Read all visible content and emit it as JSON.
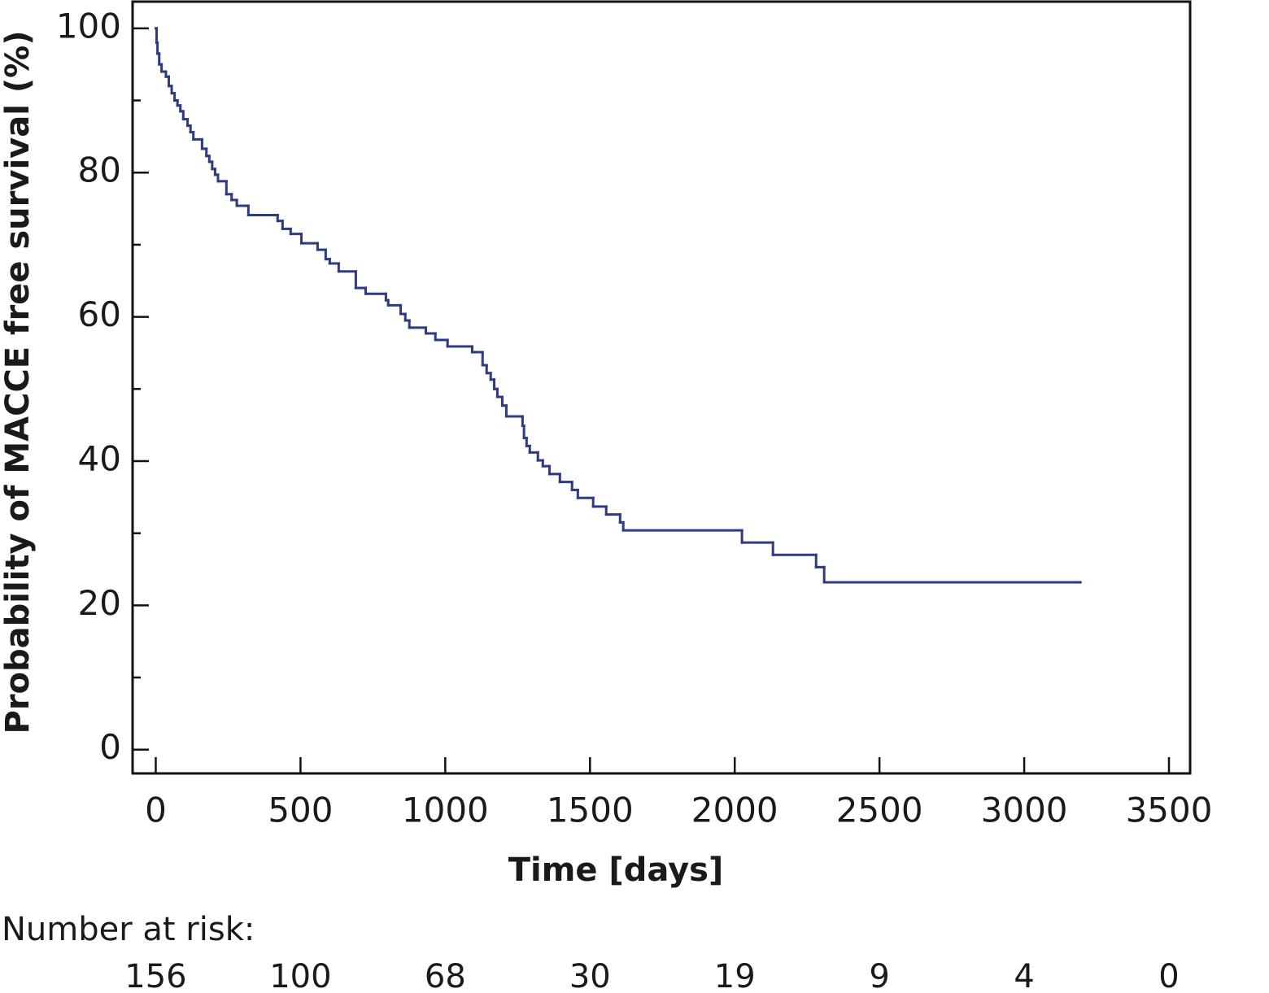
{
  "chart_data": {
    "type": "step",
    "x_label": "Time [days]",
    "y_label": "Probability of MACCE free survival (%)",
    "color": "#2b3a8c",
    "xlim": [
      -80,
      3573
    ],
    "ylim": [
      -3.3,
      103.7
    ],
    "xticks": [
      0,
      500,
      1000,
      1500,
      2000,
      2500,
      3000,
      3500
    ],
    "yticks": [
      0,
      20,
      40,
      60,
      80,
      100
    ],
    "yminor_ticks": [
      10,
      30,
      50,
      70,
      90
    ],
    "x": [
      0,
      3,
      6,
      12,
      20,
      35,
      45,
      55,
      65,
      75,
      85,
      95,
      110,
      120,
      130,
      160,
      175,
      185,
      195,
      205,
      215,
      244,
      262,
      280,
      320,
      421,
      438,
      466,
      503,
      559,
      587,
      601,
      632,
      691,
      725,
      795,
      803,
      846,
      862,
      876,
      933,
      966,
      1008,
      1093,
      1129,
      1143,
      1157,
      1169,
      1180,
      1197,
      1211,
      1267,
      1272,
      1281,
      1292,
      1320,
      1337,
      1360,
      1396,
      1438,
      1458,
      1511,
      1556,
      1604,
      1615,
      2025,
      2132,
      2281,
      2309,
      3194
    ],
    "values": [
      100,
      98,
      96.5,
      95,
      94,
      93.3,
      92,
      91,
      90,
      89.3,
      88.5,
      87.4,
      86.5,
      85.6,
      84.6,
      83.3,
      82.3,
      81.5,
      80.5,
      79.7,
      78.8,
      77,
      76.2,
      75.4,
      74.1,
      73.3,
      72.2,
      71.5,
      70.2,
      69.3,
      68,
      67.4,
      66.3,
      64,
      63.2,
      62.3,
      61.6,
      60.4,
      59.5,
      58.5,
      57.7,
      56.8,
      55.9,
      55.1,
      53.3,
      52.2,
      51.3,
      50,
      48.9,
      47.7,
      46.2,
      44.9,
      43.2,
      42.1,
      41.2,
      40.1,
      39.3,
      38.2,
      37.1,
      36,
      34.9,
      33.7,
      32.6,
      31.5,
      30.4,
      28.7,
      27,
      25.3,
      23.2,
      23.2
    ],
    "risk_title": "Number at risk:",
    "risk_counts": [
      156,
      100,
      68,
      30,
      19,
      9,
      4,
      0
    ]
  }
}
